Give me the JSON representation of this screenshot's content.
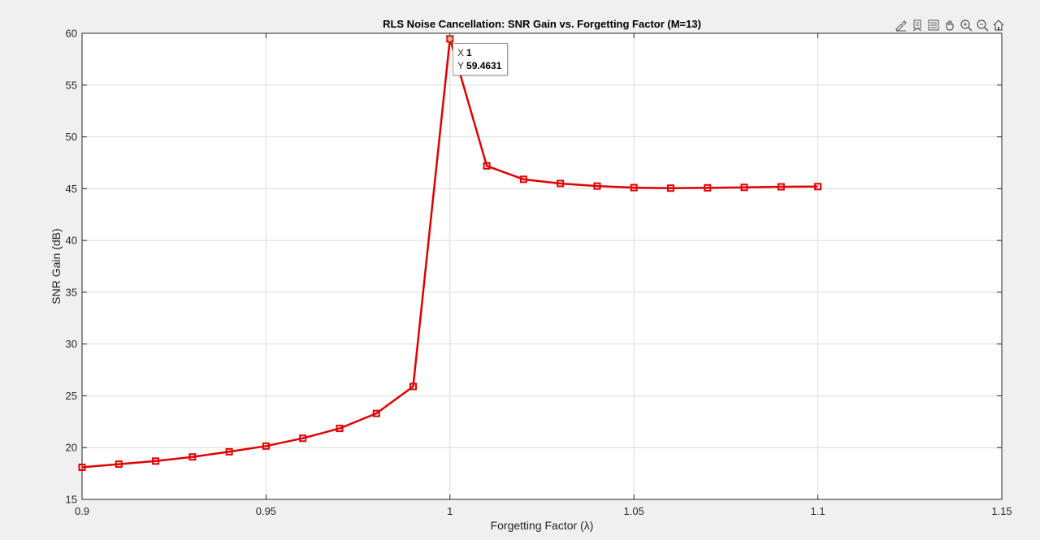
{
  "toolbar": {
    "icons": [
      "brush-icon",
      "datatip-icon",
      "legend-icon",
      "pan-icon",
      "zoom-in-icon",
      "zoom-out-icon",
      "home-icon"
    ]
  },
  "datatip": {
    "x_label": "X",
    "x_value": "1",
    "y_label": "Y",
    "y_value": "59.4631"
  },
  "colors": {
    "series": "#e00000",
    "axes": "#262626",
    "grid": "#dcdcdc",
    "background": "#f0f0f0",
    "plot_bg": "#ffffff"
  },
  "chart_data": {
    "type": "line",
    "title": "RLS Noise Cancellation: SNR Gain vs. Forgetting Factor (M=13)",
    "xlabel": "Forgetting Factor (λ)",
    "ylabel": "SNR Gain (dB)",
    "xlim": [
      0.9,
      1.15
    ],
    "ylim": [
      15,
      60
    ],
    "xticks": [
      0.9,
      0.95,
      1,
      1.05,
      1.1,
      1.15
    ],
    "xtick_labels": [
      "0.9",
      "0.95",
      "1",
      "1.05",
      "1.1",
      "1.15"
    ],
    "yticks": [
      15,
      20,
      25,
      30,
      35,
      40,
      45,
      50,
      55,
      60
    ],
    "ytick_labels": [
      "15",
      "20",
      "25",
      "30",
      "35",
      "40",
      "45",
      "50",
      "55",
      "60"
    ],
    "grid": true,
    "marker": "square",
    "series": [
      {
        "x": [
          0.9,
          0.91,
          0.92,
          0.93,
          0.94,
          0.95,
          0.96,
          0.97,
          0.98,
          0.99,
          1.0,
          1.01,
          1.02,
          1.03,
          1.04,
          1.05,
          1.06,
          1.07,
          1.08,
          1.09,
          1.1
        ],
        "y": [
          18.1,
          18.4,
          18.7,
          19.1,
          19.6,
          20.15,
          20.9,
          21.85,
          23.3,
          25.9,
          59.4631,
          47.2,
          45.9,
          45.5,
          45.25,
          45.1,
          45.05,
          45.08,
          45.12,
          45.18,
          45.2
        ]
      }
    ]
  }
}
